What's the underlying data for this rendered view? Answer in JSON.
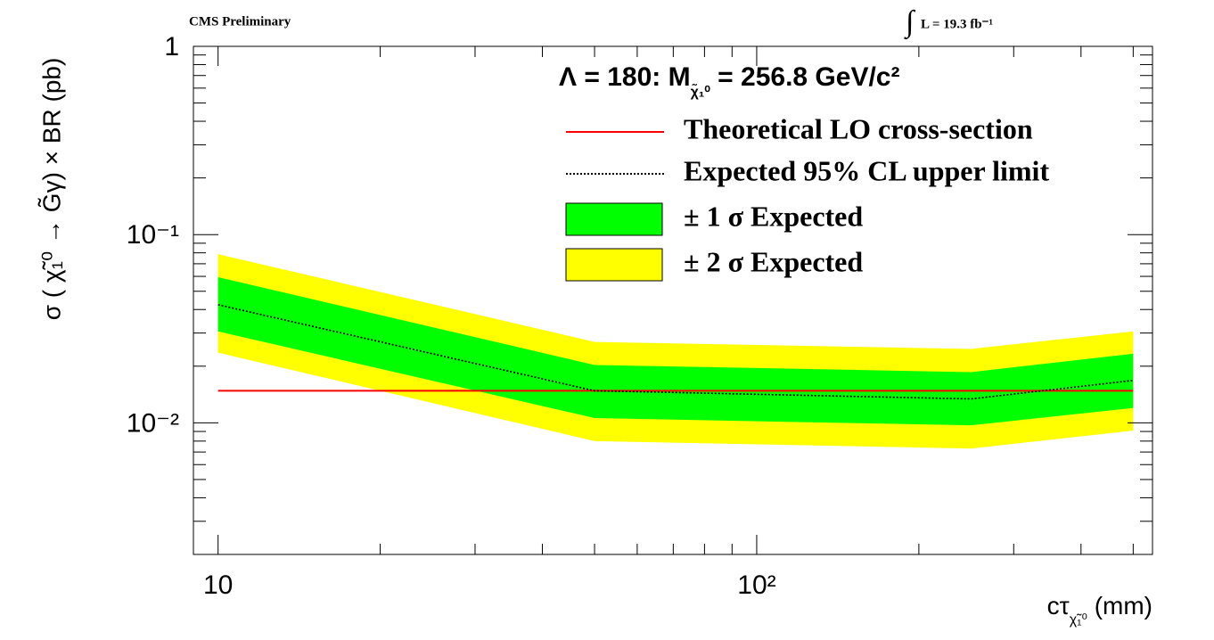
{
  "chart_data": {
    "type": "line",
    "header": "CMS Preliminary",
    "lumi_prefix": "∫",
    "lumi": "L = 19.3 fb⁻¹",
    "legend_title": {
      "main": "Λ = 180: M",
      "sub": "χ̃₁⁰",
      "rest": " =  256.8 GeV/c²"
    },
    "y_label": "σ ( χ̃₁⁰ → G̃γ) × BR (pb)",
    "x_label": {
      "main": "cτ",
      "sub": "χ̃₁⁰",
      "rest": " (mm)"
    },
    "x": [
      10,
      50,
      250,
      500
    ],
    "xlog": true,
    "ylog": true,
    "xlim": [
      9,
      543
    ],
    "ylim": [
      0.002,
      1
    ],
    "xticks": [
      10,
      {
        "value": 100,
        "label": "10²"
      }
    ],
    "yticks": [
      {
        "value": 0.01,
        "label": "10⁻²"
      },
      {
        "value": 0.1,
        "label": "10⁻¹"
      },
      1
    ],
    "xminorticks": [
      20,
      30,
      40,
      50,
      60,
      70,
      80,
      90,
      200,
      300,
      400,
      500
    ],
    "yminorticks": [
      0.003,
      0.004,
      0.005,
      0.006,
      0.007,
      0.008,
      0.009,
      0.02,
      0.03,
      0.04,
      0.05,
      0.06,
      0.07,
      0.08,
      0.09,
      0.2,
      0.3,
      0.4,
      0.5,
      0.6,
      0.7,
      0.8,
      0.9
    ],
    "bands": [
      {
        "name": "± 2 σ Expected",
        "color": "#ffff00",
        "lower": [
          0.0236,
          0.008,
          0.0073,
          0.0091
        ],
        "upper": [
          0.0787,
          0.0269,
          0.0247,
          0.0306
        ]
      },
      {
        "name": "± 1 σ Expected",
        "color": "#00ff00",
        "lower": [
          0.0306,
          0.0106,
          0.0097,
          0.012
        ],
        "upper": [
          0.0594,
          0.0203,
          0.0186,
          0.0233
        ]
      }
    ],
    "series": [
      {
        "name": "Theoretical LO cross-section",
        "color": "#ff0000",
        "style": "solid",
        "values": [
          0.0148,
          0.0148,
          0.0148,
          0.0148
        ]
      },
      {
        "name": "Expected 95% CL upper limit",
        "color": "#000000",
        "style": "dotted",
        "values": [
          0.0424,
          0.0148,
          0.0134,
          0.0168
        ]
      }
    ]
  }
}
